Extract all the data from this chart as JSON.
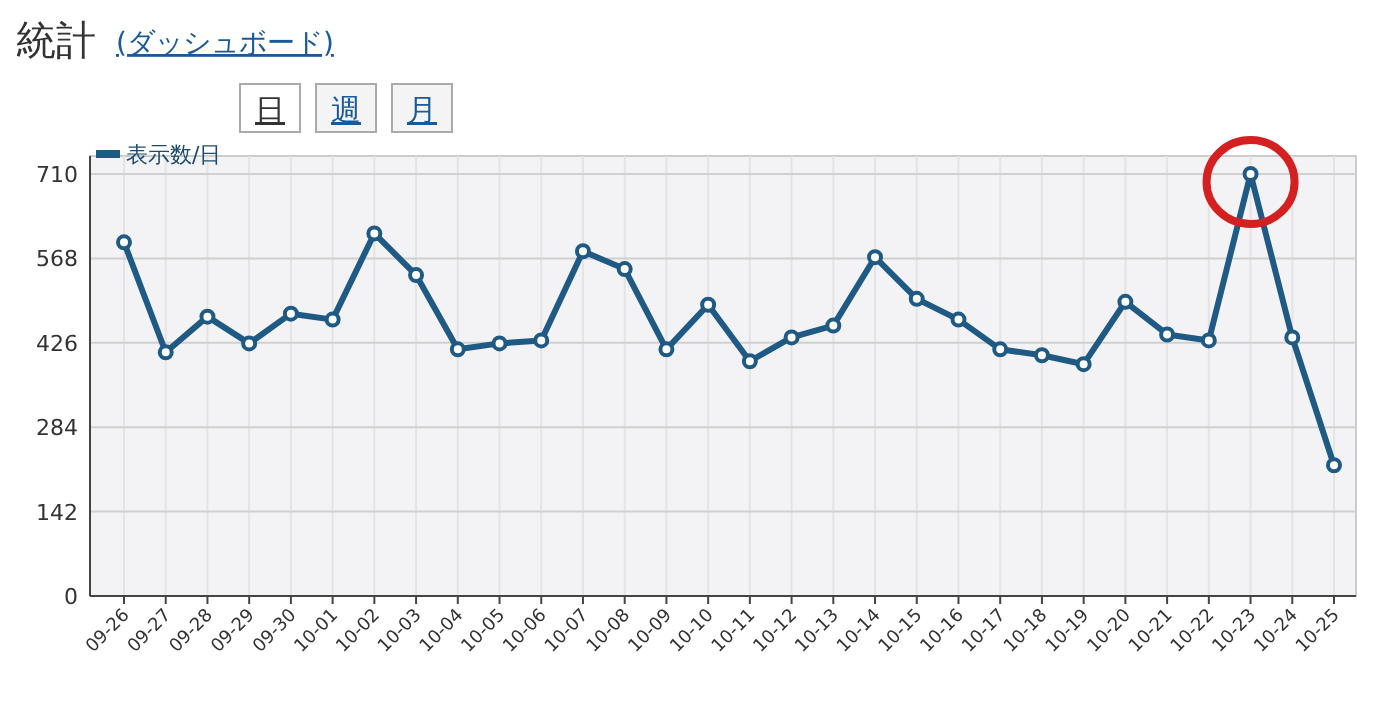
{
  "chart_data": {
    "type": "line",
    "title": "統計",
    "annotations": [
      "(ダッシュボード)",
      "日",
      "週",
      "月"
    ],
    "categories": [
      "09-26",
      "09-27",
      "09-28",
      "09-29",
      "09-30",
      "10-01",
      "10-02",
      "10-03",
      "10-04",
      "10-05",
      "10-06",
      "10-07",
      "10-08",
      "10-09",
      "10-10",
      "10-11",
      "10-12",
      "10-13",
      "10-14",
      "10-15",
      "10-16",
      "10-17",
      "10-18",
      "10-19",
      "10-20",
      "10-21",
      "10-22",
      "10-23",
      "10-24",
      "10-25"
    ],
    "series": [
      {
        "name": "表示数/日",
        "color": "#1f5a85",
        "values": [
          595,
          410,
          470,
          425,
          475,
          465,
          610,
          540,
          415,
          425,
          430,
          580,
          550,
          415,
          490,
          395,
          435,
          455,
          570,
          500,
          465,
          415,
          405,
          390,
          495,
          440,
          430,
          710,
          435,
          220
        ]
      }
    ],
    "ylim": [
      0,
      710
    ],
    "yticks": [
      0,
      142,
      284,
      426,
      568,
      710
    ],
    "grid": true,
    "legend": "top left",
    "marker": "circle"
  }
}
